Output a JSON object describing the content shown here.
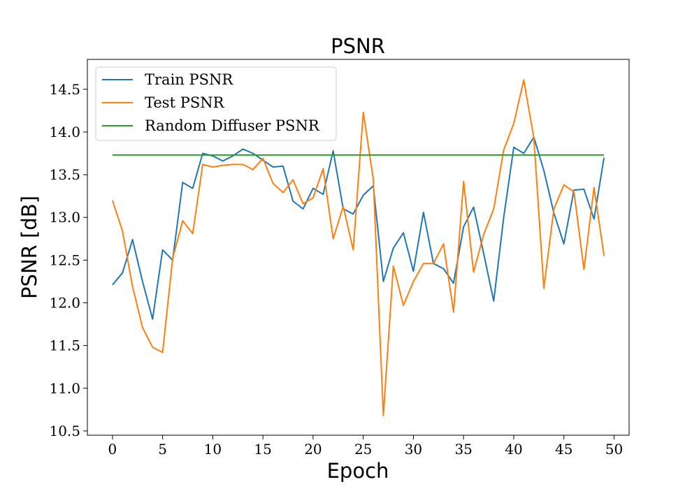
{
  "chart_data": {
    "type": "line",
    "title": "PSNR",
    "xlabel": "Epoch",
    "ylabel": "PSNR [dB]",
    "xlim": [
      -2.5,
      51.5
    ],
    "ylim": [
      10.45,
      14.85
    ],
    "xticks": [
      0,
      5,
      10,
      15,
      20,
      25,
      30,
      35,
      40,
      45,
      50
    ],
    "yticks": [
      10.5,
      11.0,
      11.5,
      12.0,
      12.5,
      13.0,
      13.5,
      14.0,
      14.5
    ],
    "x": [
      0,
      1,
      2,
      3,
      4,
      5,
      6,
      7,
      8,
      9,
      10,
      11,
      12,
      13,
      14,
      15,
      16,
      17,
      18,
      19,
      20,
      21,
      22,
      23,
      24,
      25,
      26,
      27,
      28,
      29,
      30,
      31,
      32,
      33,
      34,
      35,
      36,
      37,
      38,
      39,
      40,
      41,
      42,
      43,
      44,
      45,
      46,
      47,
      48,
      49
    ],
    "legend_position": "top-left",
    "grid": false,
    "series": [
      {
        "name": "Train PSNR",
        "color": "#1f77b4",
        "values": [
          12.21,
          12.35,
          12.74,
          12.25,
          11.81,
          12.62,
          12.5,
          13.41,
          13.34,
          13.75,
          13.72,
          13.66,
          13.72,
          13.8,
          13.75,
          13.67,
          13.59,
          13.6,
          13.19,
          13.1,
          13.34,
          13.27,
          13.78,
          13.1,
          13.04,
          13.26,
          13.37,
          12.25,
          12.64,
          12.82,
          12.37,
          13.06,
          12.46,
          12.4,
          12.23,
          12.89,
          13.12,
          12.58,
          12.02,
          13.0,
          13.82,
          13.75,
          13.94,
          13.55,
          13.05,
          12.69,
          13.32,
          13.33,
          12.98,
          13.7
        ]
      },
      {
        "name": "Test PSNR",
        "color": "#ff7f0e",
        "values": [
          13.2,
          12.84,
          12.19,
          11.71,
          11.48,
          11.42,
          12.52,
          12.96,
          12.81,
          13.62,
          13.59,
          13.61,
          13.62,
          13.62,
          13.56,
          13.69,
          13.4,
          13.29,
          13.44,
          13.16,
          13.23,
          13.57,
          12.75,
          13.13,
          12.62,
          14.23,
          13.45,
          10.68,
          12.43,
          11.97,
          12.25,
          12.46,
          12.46,
          12.69,
          11.89,
          13.42,
          12.36,
          12.8,
          13.1,
          13.79,
          14.1,
          14.61,
          13.93,
          12.17,
          13.1,
          13.38,
          13.3,
          12.39,
          13.35,
          12.55
        ]
      },
      {
        "name": "Random Diffuser PSNR",
        "color": "#2ca02c",
        "values": [
          13.73,
          13.73,
          13.73,
          13.73,
          13.73,
          13.73,
          13.73,
          13.73,
          13.73,
          13.73,
          13.73,
          13.73,
          13.73,
          13.73,
          13.73,
          13.73,
          13.73,
          13.73,
          13.73,
          13.73,
          13.73,
          13.73,
          13.73,
          13.73,
          13.73,
          13.73,
          13.73,
          13.73,
          13.73,
          13.73,
          13.73,
          13.73,
          13.73,
          13.73,
          13.73,
          13.73,
          13.73,
          13.73,
          13.73,
          13.73,
          13.73,
          13.73,
          13.73,
          13.73,
          13.73,
          13.73,
          13.73,
          13.73,
          13.73,
          13.73
        ]
      }
    ]
  }
}
